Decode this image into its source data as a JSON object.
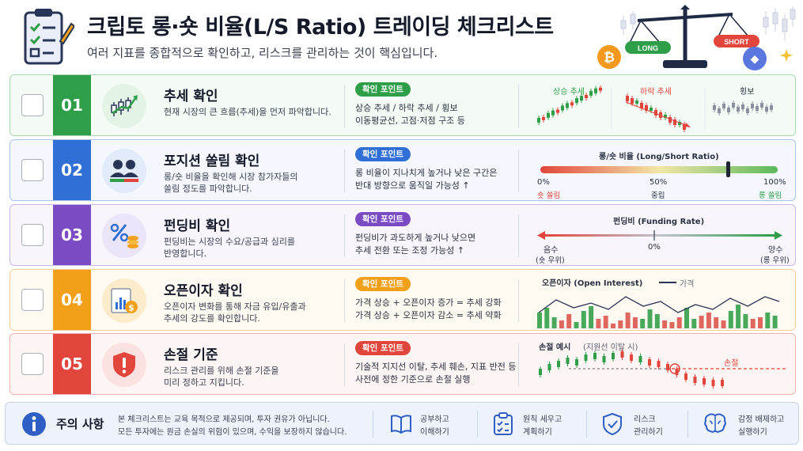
{
  "header": {
    "title": "크립토 롱·숏 비율(L/S Ratio) 트레이딩 체크리스트",
    "subtitle": "여러 지표를 종합적으로 확인하고, 리스크를 관리하는 것이 핵심입니다.",
    "long_label": "LONG",
    "short_label": "SHORT",
    "btc_glyph": "₿",
    "eth_glyph": "◆"
  },
  "pill_label": "확인 포인트",
  "rows": [
    {
      "num": "01",
      "title": "추세 확인",
      "desc1": "현재 시장의 큰 흐름(추세)을 먼저 파악합니다.",
      "desc2": "",
      "kp1": "상승 추세 / 하락 추세 / 횡보",
      "kp2": "이동평균선, 고점·저점 구조 등",
      "color": "#2e9e48",
      "icon": "candlestick-trend-icon",
      "viz": {
        "up": "상승 추세",
        "down": "하락 추세",
        "side": "횡보"
      }
    },
    {
      "num": "02",
      "title": "포지션 쏠림 확인",
      "desc1": "롱/숏 비율을 확인해 시장 참가자들의",
      "desc2": "쏠림 정도를 파악합니다.",
      "kp1": "롱 비율이 지나치게 높거나 낮은 구간은",
      "kp2": "반대 방향으로 움직일 가능성 ↑",
      "color": "#2f6fd6",
      "icon": "traders-icon",
      "viz": {
        "title": "롱/숏 비율 (Long/Short Ratio)",
        "t0": "0%",
        "t50": "50%",
        "t100": "100%",
        "l0": "숏 쏠림",
        "l50": "중립",
        "l100": "롱 쏠림",
        "marker_pct": 0.79
      }
    },
    {
      "num": "03",
      "title": "펀딩비 확인",
      "desc1": "펀딩비는 시장의 수요/공급과 심리를",
      "desc2": "반영합니다.",
      "kp1": "펀딩비가 과도하게 높거나 낮으면",
      "kp2": "추세 전환 또는 조정 가능성 ↑",
      "color": "#7b4bc4",
      "icon": "percent-coins-icon",
      "viz": {
        "title": "펀딩비 (Funding Rate)",
        "neg": "음수",
        "neg_sub": "(숏 우위)",
        "zero": "0%",
        "pos": "양수",
        "pos_sub": "(롱 우위)"
      }
    },
    {
      "num": "04",
      "title": "오픈이자 확인",
      "desc1": "오픈이자 변화를 통해 자금 유입/유출과",
      "desc2": "추세의 강도를 확인합니다.",
      "kp1": "가격 상승 + 오픈이자 증가 = 추세 강화",
      "kp2": "가격 상승 + 오픈이자 감소 = 추세 약화",
      "color": "#f2a019",
      "icon": "chart-dollar-icon",
      "viz": {
        "title": "오픈이자 (Open Interest)",
        "legend": "가격"
      }
    },
    {
      "num": "05",
      "title": "손절 기준",
      "desc1": "리스크 관리를 위해 손절 기준을",
      "desc2": "미리 정하고 지킵니다.",
      "kp1": "기술적 지지선 이탈, 추세 훼손, 지표 반전 등",
      "kp2": "사전에 정한 기준으로 손절 실행",
      "color": "#e2453c",
      "icon": "shield-alert-icon",
      "viz": {
        "title": "손절 예시",
        "title_sub": "(지원선 이탈 시)",
        "stop": "손절"
      }
    }
  ],
  "footer": {
    "title": "주의 사항",
    "note1": "본 체크리스트는 교육 목적으로 제공되며, 투자 권유가 아닙니다.",
    "note2": "모든 투자에는 원금 손실의 위험이 있으며, 수익을 보장하지 않습니다.",
    "items": [
      {
        "l1": "공부하고",
        "l2": "이해하기",
        "icon": "book-icon"
      },
      {
        "l1": "원칙 세우고",
        "l2": "계획하기",
        "icon": "checklist-icon"
      },
      {
        "l1": "리스크",
        "l2": "관리하기",
        "icon": "shield-check-icon"
      },
      {
        "l1": "감정 배제하고",
        "l2": "실행하기",
        "icon": "brain-icon"
      }
    ]
  }
}
